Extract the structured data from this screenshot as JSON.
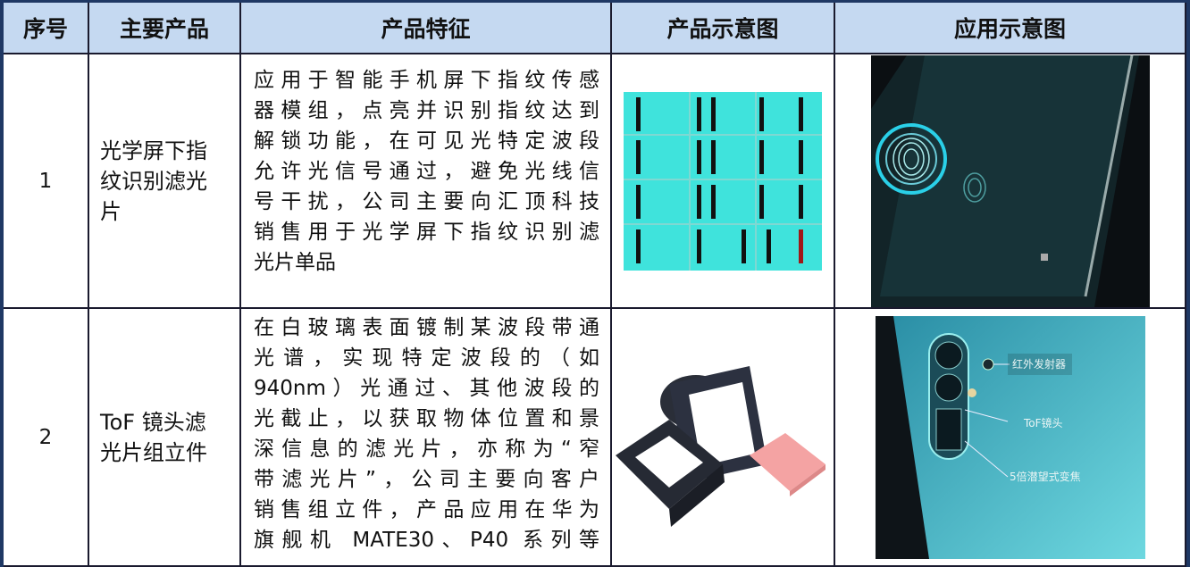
{
  "table": {
    "header": [
      "序号",
      "主要产品",
      "产品特征",
      "产品示意图",
      "应用示意图"
    ],
    "rows": [
      {
        "index": "1",
        "product": [
          "光学屏下指",
          "纹识别滤光",
          "片"
        ],
        "features": [
          "应用于智能手机屏下指纹传感",
          "器模组，点亮并识别指纹达到",
          "解锁功能，在可见光特定波段",
          "允许光信号通过，避免光线信",
          "号干扰，公司主要向汇顶科技",
          "销售用于光学屏下指纹识别滤",
          "光片单品"
        ]
      },
      {
        "index": "2",
        "product": [
          "ToF 镜头滤",
          "光片组立件"
        ],
        "features": [
          "在白玻璃表面镀制某波段带通",
          "光谱，实现特定波段的（如",
          "940nm）光通过、其他波段的",
          "光截止，以获取物体位置和景",
          "深信息的滤光片，亦称为“窄",
          "带滤光片”，公司主要向客户",
          "销售组立件，产品应用在华为",
          "旗舰机 MATE30、P40 系列等"
        ],
        "application_labels": [
          "红外发射器",
          "ToF镜头",
          "5倍潜望式变焦"
        ]
      }
    ]
  }
}
